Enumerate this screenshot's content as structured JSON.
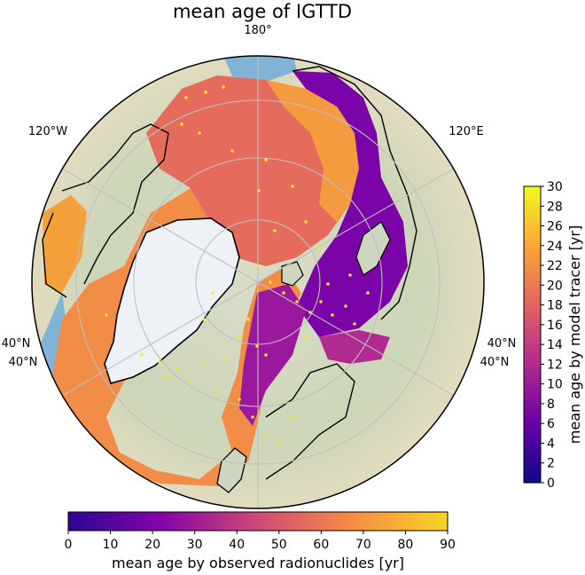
{
  "title": "mean age of IGTTD",
  "graticule_labels": {
    "top": "180°",
    "upper_left": "120°W",
    "upper_right": "120°E",
    "left_a": "40°N",
    "left_b": "40°N",
    "right_a": "40°N",
    "right_b": "40°N"
  },
  "colorbar_right": {
    "label": "mean age by model tracer [yr]",
    "ticks": [
      "0",
      "2",
      "4",
      "6",
      "8",
      "10",
      "12",
      "14",
      "16",
      "18",
      "20",
      "22",
      "24",
      "26",
      "28",
      "30"
    ],
    "range": [
      0,
      30
    ],
    "orientation": "vertical"
  },
  "colorbar_bottom": {
    "label": "mean age by observed radionuclides [yr]",
    "ticks": [
      "0",
      "10",
      "20",
      "30",
      "40",
      "50",
      "60",
      "70",
      "80",
      "90"
    ],
    "range": [
      0,
      90
    ],
    "orientation": "horizontal"
  },
  "colors": {
    "ocean": "#80b3d6",
    "land_edge": "#000000",
    "greenland_ice": "#eef1f6",
    "graticule": "#bfbfbf",
    "colormap": [
      "#0d0887",
      "#2c0594",
      "#41049d",
      "#5902a3",
      "#6f00a8",
      "#8405a7",
      "#9814a0",
      "#a82296",
      "#b6308b",
      "#c33d80",
      "#cf4a75",
      "#d8576b",
      "#e16462",
      "#e87059",
      "#f07f4f",
      "#f68d45",
      "#fa9d3a",
      "#fdae32",
      "#fdc029",
      "#f9d424",
      "#f0f921"
    ]
  },
  "map": {
    "projection": "orthographic, north polar",
    "features": [
      "arctic ocean model field",
      "greenland ice sheet",
      "coastlines",
      "graticule",
      "observation points"
    ]
  }
}
